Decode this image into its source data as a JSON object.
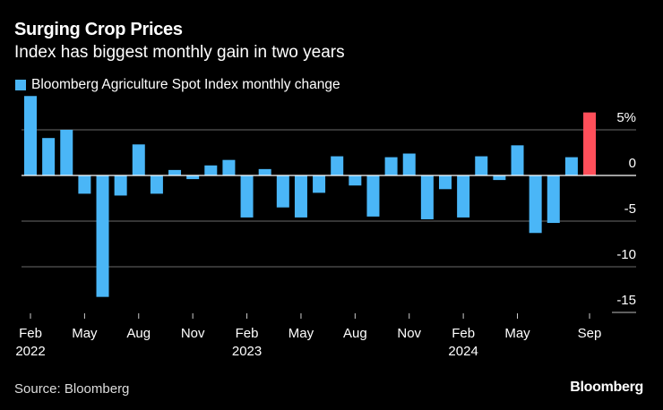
{
  "chart_data": {
    "type": "bar",
    "title": "Surging Crop Prices",
    "subtitle": "Index has biggest monthly gain in two years",
    "legend": [
      {
        "name": "Bloomberg Agriculture Spot Index monthly change",
        "color": "#4ab6f7"
      }
    ],
    "legend_placement": "top-left",
    "categories": [
      "Feb 2022",
      "Mar 2022",
      "Apr 2022",
      "May 2022",
      "Jun 2022",
      "Jul 2022",
      "Aug 2022",
      "Sep 2022",
      "Oct 2022",
      "Nov 2022",
      "Dec 2022",
      "Jan 2023",
      "Feb 2023",
      "Mar 2023",
      "Apr 2023",
      "May 2023",
      "Jun 2023",
      "Jul 2023",
      "Aug 2023",
      "Sep 2023",
      "Oct 2023",
      "Nov 2023",
      "Dec 2023",
      "Jan 2024",
      "Feb 2024",
      "Mar 2024",
      "Apr 2024",
      "May 2024",
      "Jun 2024",
      "Jul 2024",
      "Aug 2024",
      "Sep 2024"
    ],
    "values": [
      8.7,
      4.1,
      5.0,
      -2.0,
      -13.3,
      -2.2,
      3.4,
      -2.0,
      0.6,
      -0.4,
      1.1,
      1.7,
      -4.6,
      0.7,
      -3.5,
      -4.6,
      -1.9,
      2.1,
      -1.1,
      -4.5,
      2.0,
      2.4,
      -4.8,
      -1.5,
      -4.6,
      2.1,
      -0.5,
      3.3,
      -6.3,
      -5.2,
      2.0,
      6.9
    ],
    "highlight_index": 31,
    "colors": {
      "bar": "#4ab6f7",
      "highlight": "#ff4f5a",
      "background": "#000000",
      "grid": "#555555"
    },
    "ylim": [
      -15,
      8.7
    ],
    "yticks": [
      {
        "v": 5,
        "label": "5%"
      },
      {
        "v": 0,
        "label": "0"
      },
      {
        "v": -5,
        "label": "-5"
      },
      {
        "v": -10,
        "label": "-10"
      },
      {
        "v": -15,
        "label": "-15"
      }
    ],
    "xticks": [
      {
        "i": 0,
        "label": "Feb",
        "year": "2022"
      },
      {
        "i": 3,
        "label": "May",
        "year": ""
      },
      {
        "i": 6,
        "label": "Aug",
        "year": ""
      },
      {
        "i": 9,
        "label": "Nov",
        "year": ""
      },
      {
        "i": 12,
        "label": "Feb",
        "year": "2023"
      },
      {
        "i": 15,
        "label": "May",
        "year": ""
      },
      {
        "i": 18,
        "label": "Aug",
        "year": ""
      },
      {
        "i": 21,
        "label": "Nov",
        "year": ""
      },
      {
        "i": 24,
        "label": "Feb",
        "year": "2024"
      },
      {
        "i": 27,
        "label": "May",
        "year": ""
      },
      {
        "i": 31,
        "label": "Sep",
        "year": ""
      }
    ],
    "grid": true,
    "xlabel": "",
    "ylabel": ""
  },
  "footer": {
    "source": "Source: Bloomberg",
    "logo": "Bloomberg"
  }
}
